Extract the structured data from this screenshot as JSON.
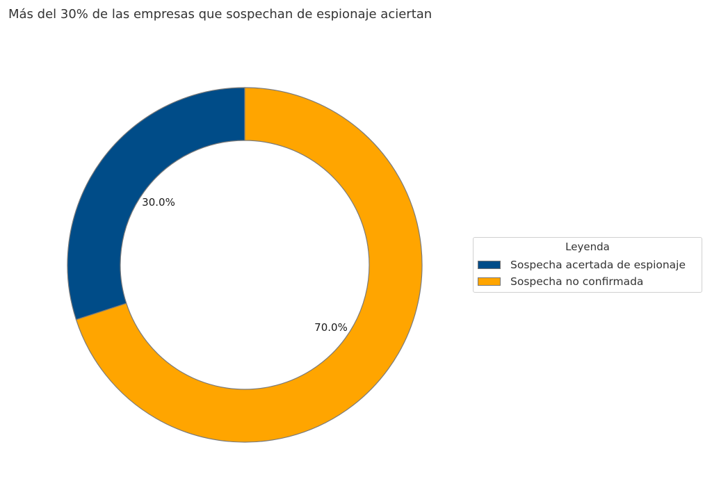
{
  "title": "Más del 30% de las empresas que sospechan de espionaje aciertan",
  "legend": {
    "title": "Leyenda",
    "items": [
      {
        "label": "Sospecha acertada de espionaje",
        "color": "#004c88"
      },
      {
        "label": "Sospecha no confirmada",
        "color": "#ffa500"
      }
    ]
  },
  "labels": {
    "slice_0": "30.0%",
    "slice_1": "70.0%"
  },
  "chart_data": {
    "type": "pie",
    "subtype": "donut",
    "title": "Más del 30% de las empresas que sospechan de espionaje aciertan",
    "categories": [
      "Sospecha acertada de espionaje",
      "Sospecha no confirmada"
    ],
    "values": [
      30.0,
      70.0
    ],
    "value_labels": [
      "30.0%",
      "70.0%"
    ],
    "colors": [
      "#004c88",
      "#ffa500"
    ],
    "start_angle": 90,
    "direction": "counterclockwise",
    "legend_title": "Leyenda",
    "legend_position": "right"
  }
}
